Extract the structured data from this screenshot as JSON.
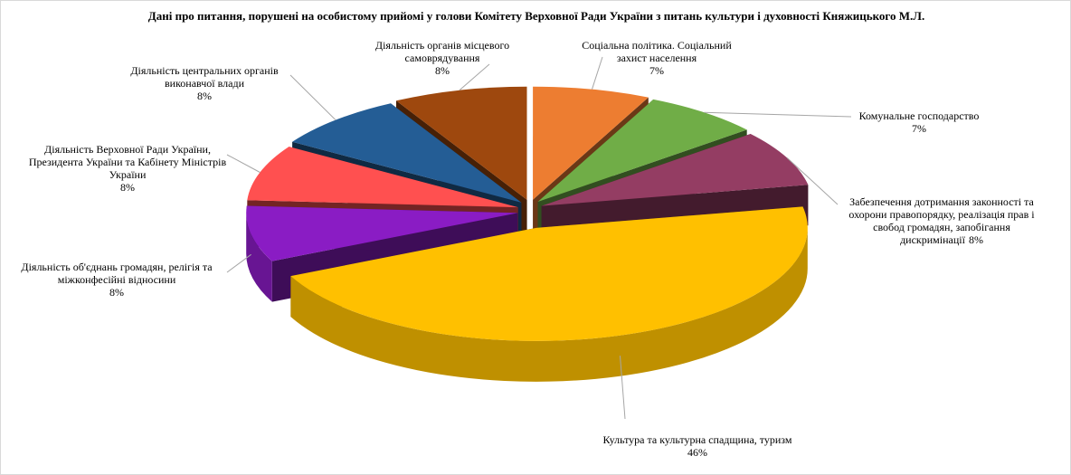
{
  "chart_data": {
    "type": "pie",
    "title": "Дані про питання, порушені на особистому прийомі у голови Комітету Верховної Ради України з питань культури і духовності Княжицького М.Л.",
    "categories": [
      "Соціальна політика.  Соціальний захист населення",
      "Комунальне господарство",
      "Забезпечення дотримання законності та охорони правопорядку, реалізація прав і свобод громадян, запобігання дискримінації",
      "Культура та культурна спадщина, туризм",
      "Діяльність  об'єднань громадян, релігія та міжконфесійні відносини",
      "Діяльність  Верховної  Ради України, Президента  України та Кабінету Міністрів  України",
      "Діяльність  центральних  органів виконавчої влади",
      "Діяльність  органів місцевого самоврядування"
    ],
    "values": [
      7,
      7,
      8,
      46,
      8,
      8,
      8,
      8
    ],
    "value_labels": [
      "7%",
      "7%",
      "8%",
      "46%",
      "8%",
      "8%",
      "8%",
      "8%"
    ],
    "colors": [
      "#ED7D31",
      "#70AD47",
      "#943D63",
      "#FFC000",
      "#8A1CC4",
      "#FF5050",
      "#245D95",
      "#9E480E"
    ]
  }
}
